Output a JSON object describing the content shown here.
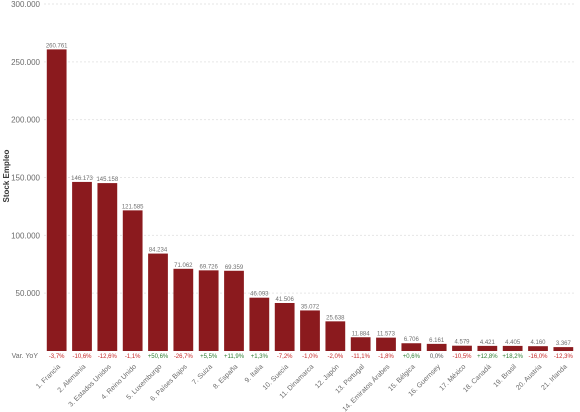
{
  "chart_data": {
    "type": "bar",
    "ylabel": "Stock Empleo",
    "ylim": [
      0,
      300000
    ],
    "yticks": [
      "50.000",
      "100.000",
      "150.000",
      "200.000",
      "250.000",
      "300.000"
    ],
    "ytick_values": [
      50000,
      100000,
      150000,
      200000,
      250000,
      300000
    ],
    "variation_label": "Var. YoY",
    "grid": true,
    "bar_color": "#8b1a1e",
    "positive_color": "#2e7d32",
    "negative_color": "#c62828",
    "categories": [
      "1. Francia",
      "2. Alemania",
      "3. Estados Unidos",
      "4. Reino Unido",
      "5. Luxemburgo",
      "6. Países Bajos",
      "7. Suiza",
      "8. España",
      "9. Italia",
      "10. Suecia",
      "11. Dinamarca",
      "12. Japón",
      "13. Portugal",
      "14. Emiratos Árabes",
      "15. Bélgica",
      "16. Guernsey",
      "17. México",
      "18. Canadá",
      "19. Brasil",
      "20. Austria",
      "21. Irlanda"
    ],
    "values": [
      260761,
      146173,
      145158,
      121585,
      84234,
      71062,
      69726,
      69359,
      46093,
      41506,
      35072,
      25638,
      11884,
      11573,
      6706,
      6161,
      4579,
      4421,
      4405,
      4160,
      3367
    ],
    "value_labels": [
      "260.761",
      "146.173",
      "145.158",
      "121.585",
      "84.234",
      "71.062",
      "69.726",
      "69.359",
      "46.093",
      "41.506",
      "35.072",
      "25.638",
      "11.884",
      "11.573",
      "6.706",
      "6.161",
      "4.579",
      "4.421",
      "4.405",
      "4.160",
      "3.367"
    ],
    "variations": [
      "-3,7%",
      "-10,6%",
      "-12,6%",
      "-1,1%",
      "+50,6%",
      "-26,7%",
      "+5,5%",
      "+11,9%",
      "+1,3%",
      "-7,2%",
      "-1,0%",
      "-2,0%",
      "-11,1%",
      "-1,8%",
      "+0,6%",
      "0,0%",
      "-10,5%",
      "+12,8%",
      "+18,2%",
      "-16,0%",
      "-12,3%"
    ]
  }
}
